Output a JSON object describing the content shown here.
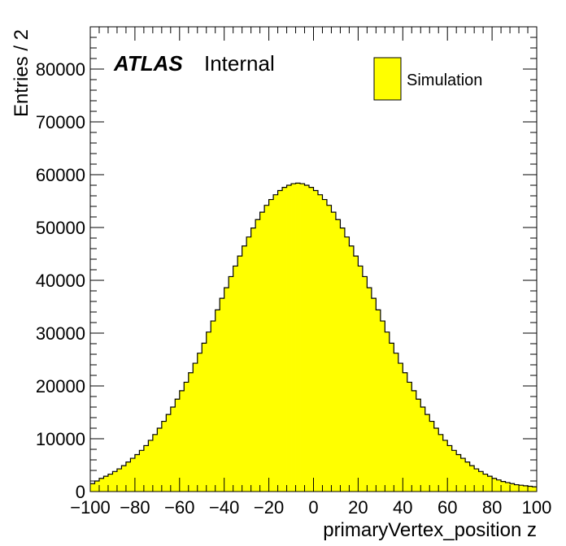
{
  "chart_data": {
    "type": "bar",
    "xlabel": "primaryVertex_position z",
    "ylabel": "Entries / 2",
    "xlim": [
      -100,
      100
    ],
    "ylim": [
      0,
      88000
    ],
    "bin_width": 2,
    "x_ticks": [
      "−100",
      "−80",
      "−60",
      "−40",
      "−20",
      "0",
      "20",
      "40",
      "60",
      "80",
      "100"
    ],
    "x_tick_values": [
      -100,
      -80,
      -60,
      -40,
      -20,
      0,
      20,
      40,
      60,
      80,
      100
    ],
    "y_ticks": [
      "0",
      "10000",
      "20000",
      "30000",
      "40000",
      "50000",
      "60000",
      "70000",
      "80000"
    ],
    "y_tick_values": [
      0,
      10000,
      20000,
      30000,
      40000,
      50000,
      60000,
      70000,
      80000
    ],
    "annotation_bold": "ATLAS",
    "annotation_text": "Internal",
    "series": [
      {
        "name": "Simulation",
        "color": "#ffff00",
        "edge_color": "#000000",
        "values": [
          1500,
          2000,
          2500,
          2900,
          3300,
          3800,
          4300,
          4900,
          5600,
          6300,
          7000,
          7800,
          8700,
          9700,
          10800,
          12000,
          13300,
          14600,
          16000,
          17500,
          19100,
          20700,
          22500,
          24300,
          26200,
          28100,
          30200,
          32300,
          34400,
          36600,
          38600,
          40700,
          42700,
          44600,
          46500,
          48200,
          49900,
          51500,
          52900,
          54200,
          55300,
          56200,
          57000,
          57600,
          58000,
          58300,
          58400,
          58300,
          58000,
          57600,
          57000,
          56200,
          55300,
          54200,
          52900,
          51500,
          49900,
          48200,
          46500,
          44600,
          42700,
          40700,
          38600,
          36600,
          34400,
          32300,
          30200,
          28100,
          26200,
          24300,
          22500,
          20700,
          19100,
          17500,
          16000,
          14600,
          13300,
          12000,
          10800,
          9700,
          8700,
          7800,
          7000,
          6300,
          5600,
          4900,
          4300,
          3800,
          3300,
          2900,
          2500,
          2200,
          1900,
          1700,
          1500,
          1300,
          1200,
          1100,
          1000,
          900
        ]
      }
    ]
  }
}
